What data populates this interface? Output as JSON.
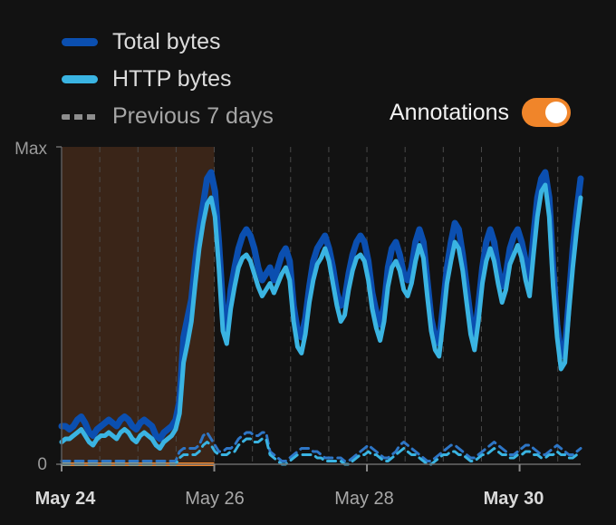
{
  "legend": {
    "items": [
      {
        "label": "Total bytes",
        "color": "#0b4fb0",
        "style": "solid"
      },
      {
        "label": "HTTP bytes",
        "color": "#3ab4e2",
        "style": "solid"
      },
      {
        "label": "Previous 7 days",
        "color": "#8e8e8e",
        "style": "dashed"
      }
    ]
  },
  "annotations": {
    "label": "Annotations",
    "enabled": true,
    "color": "#f0852a"
  },
  "chart_data": {
    "type": "line",
    "y_ticks": [
      "Max",
      "0"
    ],
    "x_ticks": [
      {
        "label": "May 24",
        "bold": true
      },
      {
        "label": "May 26",
        "bold": false
      },
      {
        "label": "May 28",
        "bold": false
      },
      {
        "label": "May 30",
        "bold": true
      }
    ],
    "x_domain_days": [
      0,
      6.8
    ],
    "ylim": [
      0,
      100
    ],
    "annotation_region": {
      "from_day": 0,
      "to_day": 2.0,
      "fill": "#3a2518"
    },
    "series": [
      {
        "name": "Total bytes",
        "color": "#0b4fb0",
        "values": [
          12,
          12,
          11,
          12,
          14,
          15,
          13,
          10,
          9,
          11,
          12,
          13,
          14,
          13,
          12,
          14,
          15,
          14,
          12,
          11,
          13,
          14,
          13,
          12,
          9,
          8,
          10,
          11,
          12,
          14,
          20,
          40,
          46,
          52,
          64,
          74,
          82,
          90,
          92,
          86,
          70,
          50,
          42,
          55,
          62,
          68,
          72,
          74,
          72,
          68,
          62,
          58,
          60,
          62,
          58,
          62,
          66,
          68,
          64,
          50,
          42,
          40,
          46,
          56,
          64,
          68,
          70,
          72,
          68,
          62,
          54,
          50,
          52,
          60,
          66,
          70,
          72,
          70,
          64,
          54,
          48,
          44,
          50,
          62,
          68,
          70,
          66,
          60,
          58,
          62,
          70,
          74,
          70,
          58,
          46,
          40,
          38,
          50,
          62,
          70,
          76,
          74,
          66,
          56,
          46,
          40,
          50,
          62,
          70,
          74,
          70,
          62,
          56,
          60,
          68,
          72,
          74,
          70,
          64,
          58,
          72,
          84,
          90,
          92,
          84,
          62,
          44,
          34,
          36,
          52,
          68,
          80,
          90
        ]
      },
      {
        "name": "HTTP bytes",
        "color": "#3ab4e2",
        "values": [
          7,
          8,
          8,
          9,
          10,
          11,
          9,
          7,
          6,
          8,
          9,
          9,
          10,
          9,
          8,
          10,
          11,
          10,
          8,
          7,
          9,
          10,
          9,
          8,
          6,
          5,
          7,
          8,
          9,
          11,
          16,
          32,
          38,
          45,
          57,
          68,
          76,
          82,
          84,
          78,
          62,
          42,
          38,
          49,
          56,
          62,
          65,
          66,
          64,
          60,
          56,
          53,
          55,
          57,
          54,
          57,
          60,
          62,
          58,
          45,
          37,
          35,
          41,
          51,
          58,
          63,
          65,
          68,
          64,
          57,
          50,
          45,
          47,
          55,
          61,
          65,
          66,
          64,
          58,
          49,
          43,
          39,
          45,
          56,
          62,
          64,
          61,
          55,
          53,
          57,
          64,
          69,
          65,
          53,
          42,
          36,
          34,
          45,
          57,
          64,
          70,
          68,
          61,
          51,
          41,
          36,
          45,
          57,
          64,
          68,
          64,
          57,
          51,
          55,
          63,
          66,
          69,
          65,
          58,
          53,
          66,
          78,
          86,
          88,
          78,
          56,
          40,
          30,
          32,
          48,
          62,
          74,
          84
        ]
      },
      {
        "name": "Previous 7 days (Total)",
        "color": "#2e76c6",
        "dashed": true,
        "values": [
          1,
          1,
          1,
          1,
          1,
          1,
          1,
          1,
          1,
          1,
          1,
          1,
          1,
          1,
          1,
          1,
          1,
          1,
          1,
          1,
          1,
          1,
          1,
          1,
          1,
          1,
          1,
          1,
          1,
          1,
          4,
          5,
          5,
          5,
          5,
          6,
          9,
          10,
          8,
          6,
          4,
          4,
          5,
          5,
          6,
          8,
          9,
          10,
          10,
          9,
          9,
          10,
          10,
          4,
          3,
          2,
          1,
          1,
          2,
          3,
          4,
          5,
          5,
          5,
          4,
          4,
          3,
          2,
          2,
          2,
          2,
          2,
          1,
          1,
          2,
          3,
          4,
          5,
          6,
          5,
          4,
          3,
          2,
          2,
          3,
          4,
          6,
          7,
          6,
          5,
          4,
          3,
          2,
          1,
          1,
          2,
          3,
          4,
          5,
          6,
          6,
          5,
          4,
          3,
          2,
          2,
          3,
          4,
          5,
          6,
          7,
          6,
          5,
          4,
          3,
          3,
          4,
          5,
          6,
          6,
          5,
          4,
          3,
          3,
          4,
          5,
          6,
          5,
          4,
          3,
          3,
          4,
          5
        ]
      },
      {
        "name": "Previous 7 days (HTTP)",
        "color": "#3ab4e2",
        "dashed": true,
        "values": [
          0,
          0,
          0,
          0,
          0,
          0,
          0,
          0,
          0,
          0,
          0,
          0,
          0,
          0,
          0,
          0,
          0,
          0,
          0,
          0,
          0,
          0,
          0,
          0,
          0,
          0,
          0,
          0,
          0,
          0,
          2,
          3,
          3,
          3,
          3,
          4,
          6,
          7,
          6,
          4,
          3,
          3,
          3,
          4,
          4,
          6,
          7,
          8,
          8,
          7,
          7,
          8,
          8,
          3,
          2,
          1,
          0,
          0,
          1,
          2,
          3,
          3,
          3,
          3,
          3,
          2,
          2,
          1,
          1,
          1,
          1,
          1,
          0,
          0,
          1,
          2,
          3,
          3,
          4,
          3,
          3,
          2,
          1,
          1,
          2,
          3,
          4,
          5,
          4,
          3,
          3,
          2,
          1,
          0,
          0,
          1,
          2,
          3,
          3,
          4,
          4,
          3,
          3,
          2,
          1,
          1,
          2,
          3,
          3,
          4,
          5,
          4,
          3,
          3,
          2,
          2,
          3,
          3,
          4,
          4,
          3,
          3,
          2,
          2,
          3,
          3,
          4,
          3,
          3,
          2,
          2,
          3,
          3
        ]
      }
    ]
  }
}
